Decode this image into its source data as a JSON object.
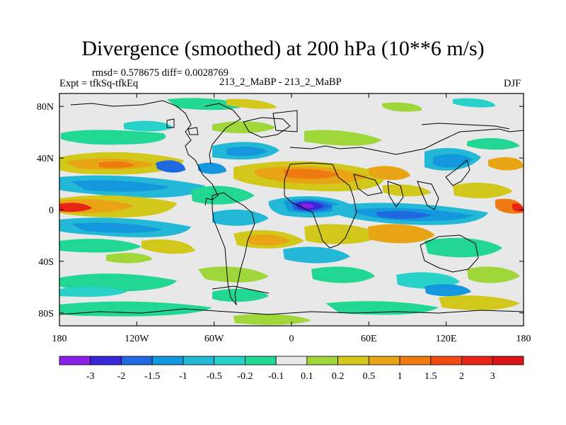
{
  "chart_data": {
    "type": "heatmap",
    "title": "Divergence (smoothed) at 200 hPa (10**6 m/s)",
    "stats": "rmsd= 0.578675 diff= 0.0028769",
    "experiment": "Expt = tfkSq-tfkEq",
    "case": "213_2_MaBP - 213_2_MaBP",
    "season": "DJF",
    "xlabel": "",
    "ylabel": "",
    "xlim": [
      -180,
      180
    ],
    "ylim": [
      -90,
      90
    ],
    "x_ticks": [
      {
        "value": -180,
        "label": "180"
      },
      {
        "value": -120,
        "label": "120W"
      },
      {
        "value": -60,
        "label": "60W"
      },
      {
        "value": 0,
        "label": "0"
      },
      {
        "value": 60,
        "label": "60E"
      },
      {
        "value": 120,
        "label": "120E"
      },
      {
        "value": 180,
        "label": "180"
      }
    ],
    "y_ticks": [
      {
        "value": 80,
        "label": "80N"
      },
      {
        "value": 40,
        "label": "40N"
      },
      {
        "value": 0,
        "label": "0"
      },
      {
        "value": -40,
        "label": "40S"
      },
      {
        "value": -80,
        "label": "80S"
      }
    ],
    "colorbar": {
      "levels": [
        "-3",
        "-2",
        "-1.5",
        "-1",
        "-0.5",
        "-0.2",
        "-0.1",
        "0.1",
        "0.2",
        "0.5",
        "1",
        "1.5",
        "2",
        "3"
      ],
      "colors": [
        "#8a1fe8",
        "#3a27d8",
        "#1f68e0",
        "#1497dc",
        "#22b8d6",
        "#28d2c8",
        "#22d694",
        "#e8e8e8",
        "#9fd63a",
        "#d2c81c",
        "#e8a414",
        "#ee7a12",
        "#ee4a12",
        "#e82418",
        "#d81414"
      ]
    },
    "features": [
      {
        "name": "equatorial-positive-dateline",
        "lon": -180,
        "lat": 0,
        "value": 2.0
      },
      {
        "name": "equatorial-positive-dateline-east",
        "lon": 180,
        "lat": 0,
        "value": 2.0
      },
      {
        "name": "africa-min",
        "lon": 15,
        "lat": 1,
        "value": -3.0
      },
      {
        "name": "maritime-negative",
        "lon": 75,
        "lat": -4,
        "value": -0.6
      },
      {
        "name": "asia-positive-band",
        "lon": 30,
        "lat": 20,
        "value": 1.0
      },
      {
        "name": "pacific-negative-band",
        "lon": -150,
        "lat": 9,
        "value": -0.8
      }
    ]
  }
}
